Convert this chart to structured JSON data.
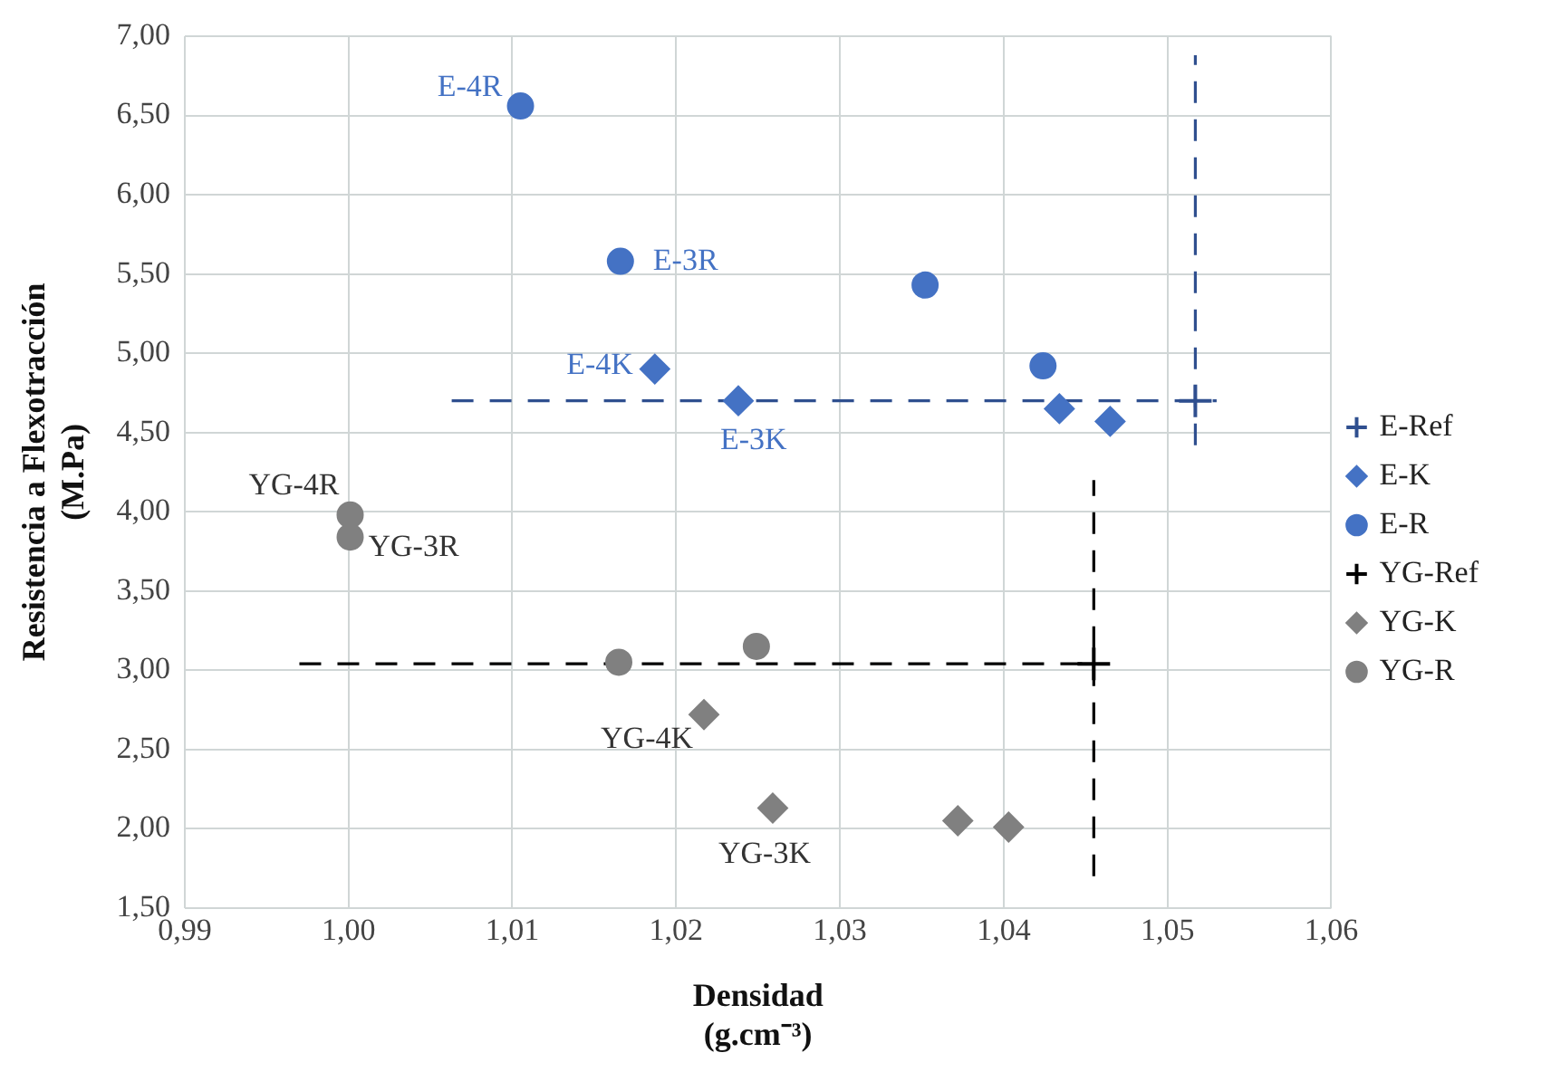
{
  "chart_data": {
    "type": "scatter",
    "xlabel": "Densidad\n(g.cm⁻³)",
    "ylabel": "Resistencia a Flexotracción\n(M.Pa)",
    "xlim": [
      0.99,
      1.06
    ],
    "xticks": [
      {
        "value": 0.99,
        "label": "0,99"
      },
      {
        "value": 1.0,
        "label": "1,00"
      },
      {
        "value": 1.01,
        "label": "1,01"
      },
      {
        "value": 1.02,
        "label": "1,02"
      },
      {
        "value": 1.03,
        "label": "1,03"
      },
      {
        "value": 1.04,
        "label": "1,04"
      },
      {
        "value": 1.05,
        "label": "1,05"
      },
      {
        "value": 1.06,
        "label": "1,06"
      }
    ],
    "ylim": [
      1.5,
      7.0
    ],
    "yticks": [
      {
        "value": 1.5,
        "label": "1,50"
      },
      {
        "value": 2.0,
        "label": "2,00"
      },
      {
        "value": 2.5,
        "label": "2,50"
      },
      {
        "value": 3.0,
        "label": "3,00"
      },
      {
        "value": 3.5,
        "label": "3,50"
      },
      {
        "value": 4.0,
        "label": "4,00"
      },
      {
        "value": 4.5,
        "label": "4,50"
      },
      {
        "value": 5.0,
        "label": "5,00"
      },
      {
        "value": 5.5,
        "label": "5,50"
      },
      {
        "value": 6.0,
        "label": "6,00"
      },
      {
        "value": 6.5,
        "label": "6,50"
      },
      {
        "value": 7.0,
        "label": "7,00"
      }
    ],
    "grid": true,
    "legend": "right",
    "series": [
      {
        "name": "E-Ref",
        "color": "#2f4f8f",
        "marker": "cross",
        "x": [
          1.0517
        ],
        "values": [
          4.7
        ],
        "errors": [
          [
            4.42,
            6.88
          ]
        ],
        "xerrors": [
          [
            1.0063,
            1.053
          ]
        ],
        "line_style": "dashed"
      },
      {
        "name": "E-K",
        "color": "#4472c4",
        "marker": "diamond",
        "x": [
          1.0187,
          1.0238,
          1.0434,
          1.0465
        ],
        "values": [
          4.9,
          4.7,
          4.65,
          4.57
        ]
      },
      {
        "name": "E-R",
        "color": "#4472c4",
        "marker": "circle",
        "x": [
          1.0105,
          1.0166,
          1.0352,
          1.0424
        ],
        "values": [
          6.56,
          5.58,
          5.43,
          4.92
        ]
      },
      {
        "name": "YG-Ref",
        "color": "#000000",
        "marker": "cross",
        "x": [
          1.0455
        ],
        "values": [
          3.04
        ],
        "errors": [
          [
            1.7,
            4.2
          ]
        ],
        "xerrors": [
          [
            0.997,
            1.0455
          ]
        ],
        "line_style": "dashed"
      },
      {
        "name": "YG-K",
        "color": "#808080",
        "marker": "diamond",
        "x": [
          1.0217,
          1.0259,
          1.0372,
          1.0403
        ],
        "values": [
          2.72,
          2.13,
          2.05,
          2.01
        ]
      },
      {
        "name": "YG-R",
        "color": "#808080",
        "marker": "circle",
        "x": [
          1.0001,
          1.0001,
          1.0165,
          1.0249
        ],
        "values": [
          3.98,
          3.84,
          3.05,
          3.15
        ]
      }
    ],
    "annotations": [
      {
        "text": "E-4R",
        "x": 1.0105,
        "y": 6.56
      },
      {
        "text": "E-3R",
        "x": 1.0166,
        "y": 5.58
      },
      {
        "text": "E-4K",
        "x": 1.0187,
        "y": 4.9
      },
      {
        "text": "E-3K",
        "x": 1.0238,
        "y": 4.7
      },
      {
        "text": "YG-4R",
        "x": 1.0001,
        "y": 3.98
      },
      {
        "text": "YG-3R",
        "x": 1.0001,
        "y": 3.84
      },
      {
        "text": "YG-4K",
        "x": 1.0217,
        "y": 2.72
      },
      {
        "text": "YG-3K",
        "x": 1.0259,
        "y": 2.13
      }
    ]
  }
}
